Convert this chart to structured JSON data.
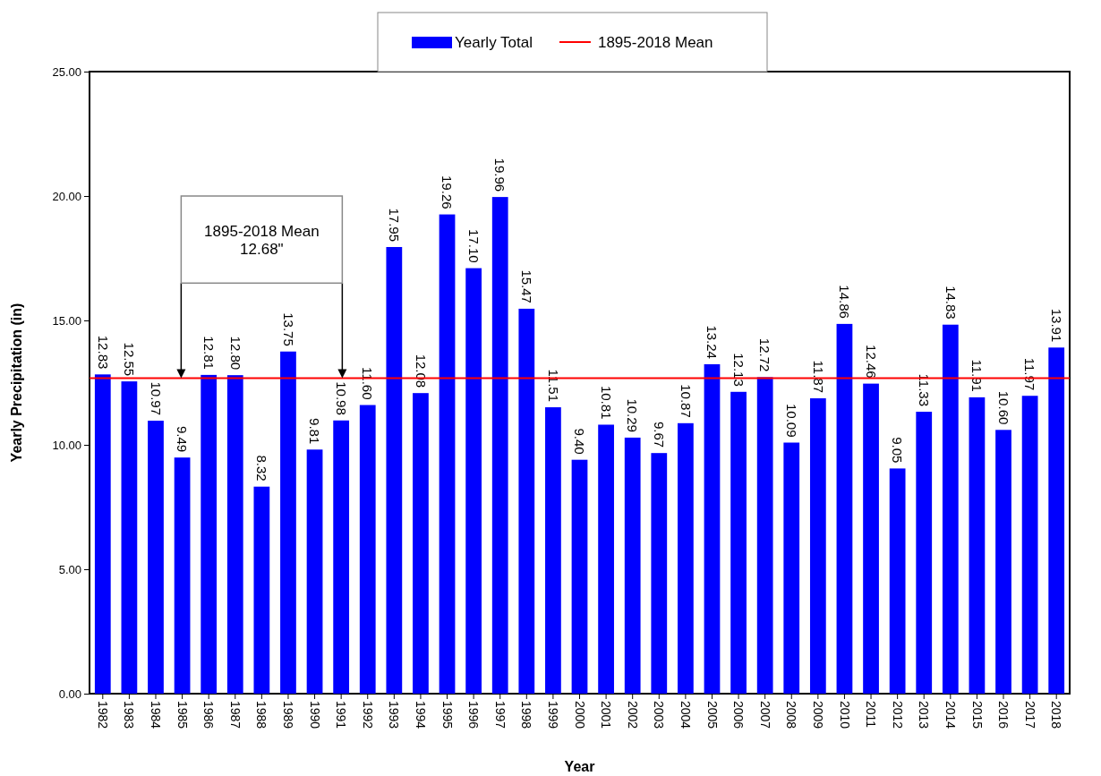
{
  "chart_data": {
    "type": "bar",
    "xlabel": "Year",
    "ylabel": "Yearly Precipitation (in)",
    "categories": [
      "1982",
      "1983",
      "1984",
      "1985",
      "1986",
      "1987",
      "1988",
      "1989",
      "1990",
      "1991",
      "1992",
      "1993",
      "1994",
      "1995",
      "1996",
      "1997",
      "1998",
      "1999",
      "2000",
      "2001",
      "2002",
      "2003",
      "2004",
      "2005",
      "2006",
      "2007",
      "2008",
      "2009",
      "2010",
      "2011",
      "2012",
      "2013",
      "2014",
      "2015",
      "2016",
      "2017",
      "2018"
    ],
    "series": [
      {
        "name": "Yearly Total",
        "color": "#0000ff",
        "values": [
          12.83,
          12.55,
          10.97,
          9.49,
          12.81,
          12.8,
          8.32,
          13.75,
          9.81,
          10.98,
          11.6,
          17.95,
          12.08,
          19.26,
          17.1,
          19.96,
          15.47,
          11.51,
          9.4,
          10.81,
          10.29,
          9.67,
          10.87,
          13.24,
          12.13,
          12.72,
          10.09,
          11.87,
          14.86,
          12.46,
          9.05,
          11.33,
          14.83,
          11.91,
          10.6,
          11.97,
          13.91
        ],
        "value_labels": [
          "12.83",
          "12.55",
          "10.97",
          "9.49",
          "12.81",
          "12.80",
          "8.32",
          "13.75",
          "9.81",
          "10.98",
          "11.60",
          "17.95",
          "12.08",
          "19.26",
          "17.10",
          "19.96",
          "15.47",
          "11.51",
          "9.40",
          "10.81",
          "10.29",
          "9.67",
          "10.87",
          "13.24",
          "12.13",
          "12.72",
          "10.09",
          "11.87",
          "14.86",
          "12.46",
          "9.05",
          "11.33",
          "14.83",
          "11.91",
          "10.60",
          "11.97",
          "13.91"
        ]
      }
    ],
    "ylim": [
      0,
      25
    ],
    "yticks": [
      {
        "value": 0,
        "label": "0.00"
      },
      {
        "value": 5,
        "label": "5.00"
      },
      {
        "value": 10,
        "label": "10.00"
      },
      {
        "value": 15,
        "label": "15.00"
      },
      {
        "value": 20,
        "label": "20.00"
      },
      {
        "value": 25,
        "label": "25.00"
      }
    ],
    "ref_lines": [
      {
        "axis": "y",
        "value": 12.68,
        "label": "1895-2018 Mean",
        "color": "#ff0000"
      }
    ],
    "annotations": [
      "1895-2018 Mean\n12.68\""
    ],
    "legend": "top",
    "grid": false
  }
}
